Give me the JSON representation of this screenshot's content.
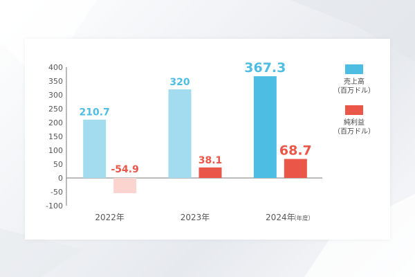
{
  "chart_data": {
    "type": "bar",
    "categories": [
      "2022年",
      "2023年",
      "2024年"
    ],
    "x_unit": "（年度）",
    "ylim": [
      -100,
      400
    ],
    "yticks": [
      400,
      350,
      300,
      250,
      200,
      150,
      100,
      50,
      0,
      -50,
      -100
    ],
    "grid": false,
    "legend": "right",
    "series": [
      {
        "name": "売上高",
        "unit": "（百万ドル）",
        "values": [
          210.7,
          320,
          367.3
        ],
        "labels": [
          "210.7",
          "320",
          "367.3"
        ],
        "colors": [
          "#a4dcef",
          "#a4dcef",
          "#4ebde3"
        ],
        "label_color": "#4ebde3"
      },
      {
        "name": "純利益",
        "unit": "（百万ドル）",
        "values": [
          -54.9,
          38.1,
          68.7
        ],
        "labels": [
          "-54.9",
          "38.1",
          "68.7"
        ],
        "colors": [
          "#fbd4d0",
          "#ea5648",
          "#ea5648"
        ],
        "label_color": "#ea5648"
      }
    ]
  },
  "legend": [
    {
      "name": "売上高",
      "unit": "（百万ドル）",
      "color": "#4ebde3"
    },
    {
      "name": "純利益",
      "unit": "（百万ドル）",
      "color": "#ea5648"
    }
  ]
}
